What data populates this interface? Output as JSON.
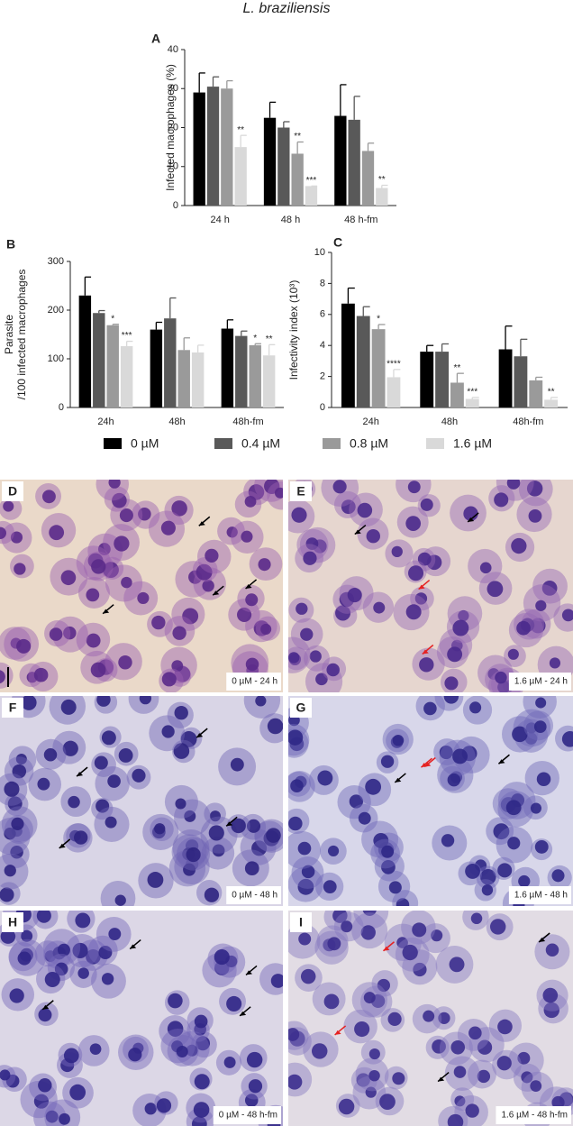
{
  "title": "L. braziliensis",
  "chart_data": [
    {
      "type": "bar",
      "panel": "A",
      "y_label": [
        "Infected macrophages (%)"
      ],
      "categories": [
        "24 h",
        "48 h",
        "48 h-fm"
      ],
      "ylim": [
        0,
        40
      ],
      "yticks": [
        0,
        10,
        20,
        30,
        40
      ],
      "series": [
        {
          "name": "0 µM",
          "color": "#000000",
          "values": [
            29,
            22.5,
            23
          ],
          "errors": [
            5,
            4,
            8
          ],
          "significance": [
            null,
            null,
            null
          ]
        },
        {
          "name": "0.4 µM",
          "color": "#595959",
          "values": [
            30.5,
            20,
            22
          ],
          "errors": [
            2.5,
            1.5,
            6
          ],
          "significance": [
            null,
            null,
            null
          ]
        },
        {
          "name": "0.8 µM",
          "color": "#9a9a9a",
          "values": [
            30,
            13.3,
            14
          ],
          "errors": [
            2,
            3,
            2
          ],
          "significance": [
            null,
            "**",
            null
          ]
        },
        {
          "name": "1.6 µM",
          "color": "#d9d9d9",
          "values": [
            15,
            5,
            4.5
          ],
          "errors": [
            3,
            0,
            0.7
          ],
          "significance": [
            "**",
            "***",
            "**"
          ]
        }
      ]
    },
    {
      "type": "bar",
      "panel": "B",
      "y_label": [
        "Parasite",
        "/100 infected macrophages"
      ],
      "categories": [
        "24h",
        "48h",
        "48h-fm"
      ],
      "ylim": [
        0,
        300
      ],
      "yticks": [
        0,
        100,
        200,
        300
      ],
      "series": [
        {
          "name": "0 µM",
          "color": "#000000",
          "values": [
            230,
            160,
            162
          ],
          "errors": [
            38,
            15,
            18
          ],
          "significance": [
            null,
            null,
            null
          ]
        },
        {
          "name": "0.4 µM",
          "color": "#595959",
          "values": [
            194,
            183,
            147
          ],
          "errors": [
            5,
            42,
            10
          ],
          "significance": [
            null,
            null,
            null
          ]
        },
        {
          "name": "0.8 µM",
          "color": "#9a9a9a",
          "values": [
            169,
            118,
            128
          ],
          "errors": [
            2,
            25,
            3
          ],
          "significance": [
            "*",
            null,
            "*"
          ]
        },
        {
          "name": "1.6 µM",
          "color": "#d9d9d9",
          "values": [
            126,
            113,
            107
          ],
          "errors": [
            10,
            15,
            22
          ],
          "significance": [
            "***",
            null,
            "**"
          ]
        }
      ]
    },
    {
      "type": "bar",
      "panel": "C",
      "y_label": [
        "Infectivity index (10³)"
      ],
      "categories": [
        "24h",
        "48h",
        "48h-fm"
      ],
      "ylim": [
        0,
        10
      ],
      "yticks": [
        0,
        2,
        4,
        6,
        8,
        10
      ],
      "series": [
        {
          "name": "0 µM",
          "color": "#000000",
          "values": [
            6.7,
            3.6,
            3.75
          ],
          "errors": [
            1,
            0.4,
            1.5
          ],
          "significance": [
            null,
            null,
            null
          ]
        },
        {
          "name": "0.4 µM",
          "color": "#595959",
          "values": [
            5.9,
            3.6,
            3.3
          ],
          "errors": [
            0.6,
            0.5,
            1.1
          ],
          "significance": [
            null,
            null,
            null
          ]
        },
        {
          "name": "0.8 µM",
          "color": "#9a9a9a",
          "values": [
            5.05,
            1.6,
            1.75
          ],
          "errors": [
            0.3,
            0.6,
            0.2
          ],
          "significance": [
            "*",
            "**",
            null
          ]
        },
        {
          "name": "1.6 µM",
          "color": "#d9d9d9",
          "values": [
            1.95,
            0.55,
            0.5
          ],
          "errors": [
            0.5,
            0.1,
            0.15
          ],
          "significance": [
            "****",
            "***",
            "**"
          ]
        }
      ]
    }
  ],
  "panels": [
    {
      "letter": "D",
      "caption": "0 µM - 24 h"
    },
    {
      "letter": "E",
      "caption": "1.6 µM - 24 h"
    },
    {
      "letter": "F",
      "caption": "0 µM - 48 h"
    },
    {
      "letter": "G",
      "caption": "1.6 µM - 48 h"
    },
    {
      "letter": "H",
      "caption": "0 µM - 48 h-fm"
    },
    {
      "letter": "I",
      "caption": "1.6 µM - 48 h-fm"
    }
  ]
}
